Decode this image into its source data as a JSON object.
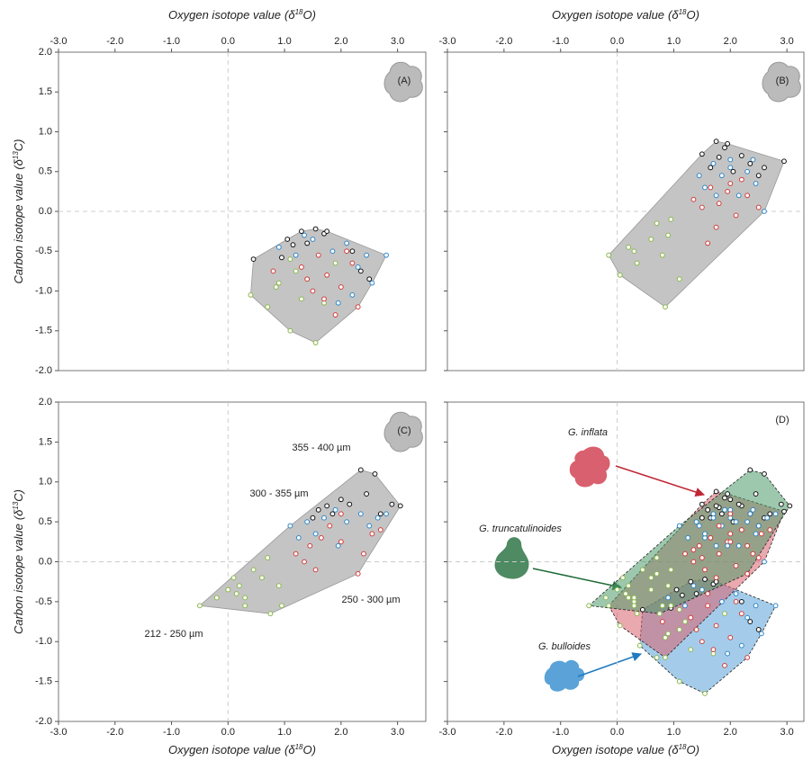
{
  "chart_data": [
    {
      "type": "scatter",
      "panel_label": "(A)",
      "x_label": {
        "text": "Oxygen isotope value",
        "open": "(δ",
        "sup": "18",
        "close": "O)"
      },
      "x_axis_side": "top",
      "y_label": {
        "text": "Carbon isotope value",
        "open": "(δ",
        "sup": "13",
        "close": "C)"
      },
      "xlim": [
        -3,
        3.5
      ],
      "ylim": [
        -2,
        2
      ],
      "zero_lines": true,
      "hull_color": "#c4c4c4",
      "xticks": [
        {
          "value": -3,
          "label": "-3.0"
        },
        {
          "value": -2,
          "label": "-2.0"
        },
        {
          "value": -1,
          "label": "-1.0"
        },
        {
          "value": 0,
          "label": "0.0"
        },
        {
          "value": 1,
          "label": "1.0"
        },
        {
          "value": 2,
          "label": "2.0"
        },
        {
          "value": 3,
          "label": "3.0"
        }
      ],
      "yticks": [
        {
          "value": -2,
          "label": "-2.0"
        },
        {
          "value": -1.5,
          "label": "-1.5"
        },
        {
          "value": -1,
          "label": "-1.0"
        },
        {
          "value": -0.5,
          "label": "-0.5"
        },
        {
          "value": 0,
          "label": "0.0"
        },
        {
          "value": 0.5,
          "label": "0.5"
        },
        {
          "value": 1,
          "label": "1.0"
        },
        {
          "value": 1.5,
          "label": "1.5"
        },
        {
          "value": 2,
          "label": "2.0"
        }
      ],
      "series": [
        {
          "color": "#8ab84a",
          "x": [
            0.4,
            0.7,
            0.9,
            1.1,
            1.2,
            1.1,
            0.85,
            1.3,
            1.55,
            1.7,
            1.9,
            1.4
          ],
          "values": [
            -1.05,
            -1.2,
            -0.9,
            -1.5,
            -0.75,
            -0.6,
            -0.95,
            -1.1,
            -1.65,
            -1.15,
            -0.65,
            -0.85
          ]
        },
        {
          "color": "#d23b3b",
          "x": [
            0.8,
            1.3,
            1.5,
            1.6,
            1.75,
            1.9,
            2.0,
            2.1,
            2.2,
            1.7,
            1.4,
            2.3
          ],
          "values": [
            -0.75,
            -0.7,
            -1.0,
            -0.55,
            -0.8,
            -1.3,
            -0.95,
            -0.5,
            -0.65,
            -1.1,
            -0.85,
            -1.2
          ]
        },
        {
          "color": "#2e86c8",
          "x": [
            0.9,
            1.2,
            1.35,
            1.5,
            1.85,
            2.1,
            2.3,
            2.45,
            2.55,
            2.8,
            1.95,
            2.2
          ],
          "values": [
            -0.45,
            -0.55,
            -0.3,
            -0.35,
            -0.5,
            -0.4,
            -0.7,
            -0.55,
            -0.9,
            -0.55,
            -1.15,
            -1.05
          ]
        },
        {
          "color": "#111111",
          "x": [
            0.45,
            0.95,
            1.05,
            1.15,
            1.3,
            1.4,
            1.55,
            1.7,
            2.35,
            2.5,
            1.75,
            2.2
          ],
          "values": [
            -0.6,
            -0.58,
            -0.35,
            -0.42,
            -0.25,
            -0.4,
            -0.22,
            -0.28,
            -0.75,
            -0.85,
            -0.25,
            -0.5
          ]
        }
      ]
    },
    {
      "type": "scatter",
      "panel_label": "(B)",
      "x_label": {
        "text": "Oxygen isotope value",
        "open": "(δ",
        "sup": "18",
        "close": "O)"
      },
      "x_axis_side": "top",
      "xlim": [
        -3,
        3.3
      ],
      "ylim": [
        -2,
        2
      ],
      "zero_lines": true,
      "hull_color": "#c4c4c4",
      "xticks": [
        {
          "value": -3,
          "label": "-3.0"
        },
        {
          "value": -2,
          "label": "-2.0"
        },
        {
          "value": -1,
          "label": "-1.0"
        },
        {
          "value": 0,
          "label": "0.0"
        },
        {
          "value": 1,
          "label": "1.0"
        },
        {
          "value": 2,
          "label": "2.0"
        },
        {
          "value": 3,
          "label": "3.0"
        }
      ],
      "yticks": [
        -2,
        -1.5,
        -1,
        -0.5,
        0,
        0.5,
        1,
        1.5,
        2
      ],
      "series": [
        {
          "color": "#8ab84a",
          "x": [
            -0.15,
            0.05,
            0.2,
            0.35,
            0.6,
            0.8,
            0.85,
            0.9,
            0.95,
            0.7,
            0.3,
            1.1
          ],
          "values": [
            -0.55,
            -0.8,
            -0.45,
            -0.65,
            -0.35,
            -0.55,
            -1.2,
            -0.3,
            -0.1,
            -0.15,
            -0.5,
            -0.85
          ]
        },
        {
          "color": "#d23b3b",
          "x": [
            1.35,
            1.5,
            1.65,
            1.8,
            1.95,
            2.1,
            2.3,
            2.5,
            1.6,
            2.0,
            1.75,
            2.2
          ],
          "values": [
            0.15,
            0.05,
            0.3,
            0.1,
            0.25,
            -0.05,
            0.2,
            0.05,
            -0.4,
            0.35,
            -0.2,
            0.4
          ]
        },
        {
          "color": "#2e86c8",
          "x": [
            1.45,
            1.55,
            1.7,
            1.85,
            2.0,
            2.15,
            2.3,
            2.45,
            2.6,
            2.0,
            1.75,
            2.4
          ],
          "values": [
            0.45,
            0.3,
            0.6,
            0.45,
            0.55,
            0.2,
            0.5,
            0.35,
            0.0,
            0.65,
            0.2,
            0.65
          ]
        },
        {
          "color": "#111111",
          "x": [
            1.5,
            1.65,
            1.75,
            1.8,
            1.9,
            2.05,
            2.2,
            2.35,
            2.5,
            2.6,
            2.95,
            1.95
          ],
          "values": [
            0.72,
            0.55,
            0.88,
            0.68,
            0.8,
            0.5,
            0.7,
            0.6,
            0.45,
            0.55,
            0.63,
            0.85
          ]
        }
      ]
    },
    {
      "type": "scatter",
      "panel_label": "(C)",
      "x_label": {
        "text": "Oxygen isotope value",
        "open": "(δ",
        "sup": "18",
        "close": "O)"
      },
      "x_axis_side": "bottom",
      "y_label": {
        "text": "Carbon isotope value",
        "open": "(δ",
        "sup": "13",
        "close": "C)"
      },
      "xlim": [
        -3,
        3.5
      ],
      "ylim": [
        -2,
        2
      ],
      "zero_lines": true,
      "hull_color": "#c4c4c4",
      "xticks": [
        {
          "value": -3,
          "label": "-3.0"
        },
        {
          "value": -2,
          "label": "-2.0"
        },
        {
          "value": -1,
          "label": "-1.0"
        },
        {
          "value": 0,
          "label": "0.0"
        },
        {
          "value": 1,
          "label": "1.0"
        },
        {
          "value": 2,
          "label": "2.0"
        },
        {
          "value": 3,
          "label": "3.0"
        }
      ],
      "yticks": [
        {
          "value": -2,
          "label": "-2.0"
        },
        {
          "value": -1.5,
          "label": "-1.5"
        },
        {
          "value": -1,
          "label": "-1.0"
        },
        {
          "value": -0.5,
          "label": "-0.5"
        },
        {
          "value": 0,
          "label": "0.0"
        },
        {
          "value": 0.5,
          "label": "0.5"
        },
        {
          "value": 1,
          "label": "1.0"
        },
        {
          "value": 1.5,
          "label": "1.5"
        },
        {
          "value": 2,
          "label": "2.0"
        }
      ],
      "series": [
        {
          "name": "212 - 250 µm",
          "color": "#8ab84a",
          "x": [
            -0.5,
            -0.2,
            0.0,
            0.1,
            0.2,
            0.3,
            0.45,
            0.6,
            0.75,
            0.95,
            0.9,
            0.7,
            0.3,
            0.15
          ],
          "values": [
            -0.55,
            -0.45,
            -0.35,
            -0.2,
            -0.3,
            -0.45,
            -0.1,
            -0.2,
            -0.65,
            -0.55,
            -0.3,
            0.05,
            -0.55,
            -0.4
          ]
        },
        {
          "name": "250 - 300 µm",
          "color": "#d23b3b",
          "x": [
            1.2,
            1.35,
            1.45,
            1.55,
            1.65,
            2.0,
            2.3,
            2.4,
            2.55,
            2.7,
            2.0,
            1.8
          ],
          "values": [
            0.1,
            0.0,
            0.2,
            -0.1,
            0.3,
            0.25,
            -0.15,
            0.1,
            0.35,
            0.4,
            0.6,
            0.45
          ]
        },
        {
          "name": "300 - 355 µm",
          "color": "#2e86c8",
          "x": [
            1.1,
            1.25,
            1.4,
            1.55,
            1.7,
            1.9,
            2.1,
            2.35,
            2.5,
            2.65,
            2.8,
            1.95
          ],
          "values": [
            0.45,
            0.3,
            0.5,
            0.35,
            0.55,
            0.65,
            0.5,
            0.6,
            0.45,
            0.55,
            0.6,
            0.2
          ]
        },
        {
          "name": "355 - 400 µm",
          "color": "#111111",
          "x": [
            1.5,
            1.6,
            1.75,
            1.85,
            2.0,
            2.15,
            2.35,
            2.45,
            2.6,
            2.7,
            2.9,
            3.05
          ],
          "values": [
            0.55,
            0.65,
            0.7,
            0.6,
            0.78,
            0.72,
            1.15,
            0.85,
            1.1,
            0.6,
            0.72,
            0.7
          ]
        }
      ]
    },
    {
      "type": "hull_overlay",
      "panel_label": "(D)",
      "x_label": {
        "text": "Oxygen isotope value",
        "open": "(δ",
        "sup": "18",
        "close": "O)"
      },
      "x_axis_side": "bottom",
      "xlim": [
        -3,
        3.3
      ],
      "ylim": [
        -2,
        2
      ],
      "zero_lines": true,
      "xticks": [
        {
          "value": -3,
          "label": "-3.0"
        },
        {
          "value": -2,
          "label": "-2.0"
        },
        {
          "value": -1,
          "label": "-1.0"
        },
        {
          "value": 0,
          "label": "0.0"
        },
        {
          "value": 1,
          "label": "1.0"
        },
        {
          "value": 2,
          "label": "2.0"
        },
        {
          "value": 3,
          "label": "3.0"
        }
      ],
      "yticks": [
        -2,
        -1.5,
        -1,
        -0.5,
        0,
        0.5,
        1,
        1.5,
        2
      ],
      "groups": [
        {
          "name": "G. bulloides",
          "color": "#5aa2d8"
        },
        {
          "name": "G. inflata",
          "color": "#d9606e"
        },
        {
          "name": "G. truncatulinoides",
          "color": "#4e9a6a"
        }
      ]
    }
  ]
}
